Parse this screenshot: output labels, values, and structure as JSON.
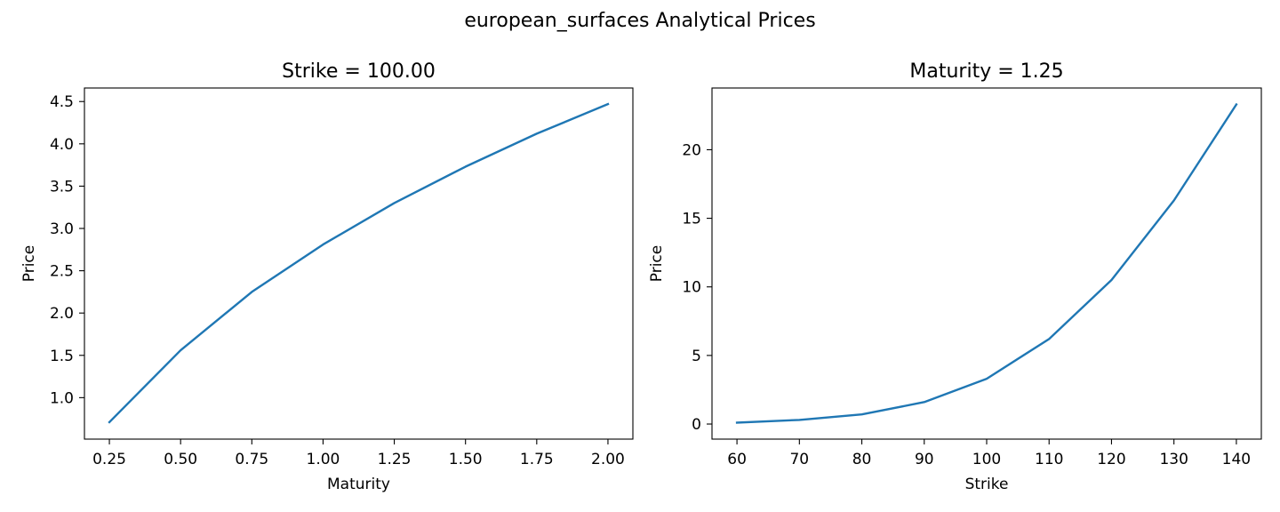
{
  "suptitle": "european_surfaces Analytical Prices",
  "chart_data": [
    {
      "type": "line",
      "title": "Strike = 100.00",
      "xlabel": "Maturity",
      "ylabel": "Price",
      "xlim": [
        0.1625,
        2.0875
      ],
      "ylim": [
        0.51,
        4.66
      ],
      "xticks": [
        0.25,
        0.5,
        0.75,
        1.0,
        1.25,
        1.5,
        1.75,
        2.0
      ],
      "xtick_labels": [
        "0.25",
        "0.50",
        "0.75",
        "1.00",
        "1.25",
        "1.50",
        "1.75",
        "2.00"
      ],
      "yticks": [
        1.0,
        1.5,
        2.0,
        2.5,
        3.0,
        3.5,
        4.0,
        4.5
      ],
      "ytick_labels": [
        "1.0",
        "1.5",
        "2.0",
        "2.5",
        "3.0",
        "3.5",
        "4.0",
        "4.5"
      ],
      "grid": false,
      "series": [
        {
          "color": "#1f77b4",
          "x": [
            0.25,
            0.5,
            0.75,
            1.0,
            1.25,
            1.5,
            1.75,
            2.0
          ],
          "y": [
            0.71,
            1.56,
            2.25,
            2.81,
            3.3,
            3.73,
            4.12,
            4.47
          ]
        }
      ]
    },
    {
      "type": "line",
      "title": "Maturity = 1.25",
      "xlabel": "Strike",
      "ylabel": "Price",
      "xlim": [
        56,
        144
      ],
      "ylim": [
        -1.1,
        24.5
      ],
      "xticks": [
        60,
        70,
        80,
        90,
        100,
        110,
        120,
        130,
        140
      ],
      "xtick_labels": [
        "60",
        "70",
        "80",
        "90",
        "100",
        "110",
        "120",
        "130",
        "140"
      ],
      "yticks": [
        0,
        5,
        10,
        15,
        20
      ],
      "ytick_labels": [
        "0",
        "5",
        "10",
        "15",
        "20"
      ],
      "grid": false,
      "series": [
        {
          "color": "#1f77b4",
          "x": [
            60,
            70,
            80,
            90,
            100,
            110,
            120,
            130,
            140
          ],
          "y": [
            0.1,
            0.3,
            0.7,
            1.6,
            3.3,
            6.2,
            10.5,
            16.3,
            23.3
          ]
        }
      ]
    }
  ]
}
